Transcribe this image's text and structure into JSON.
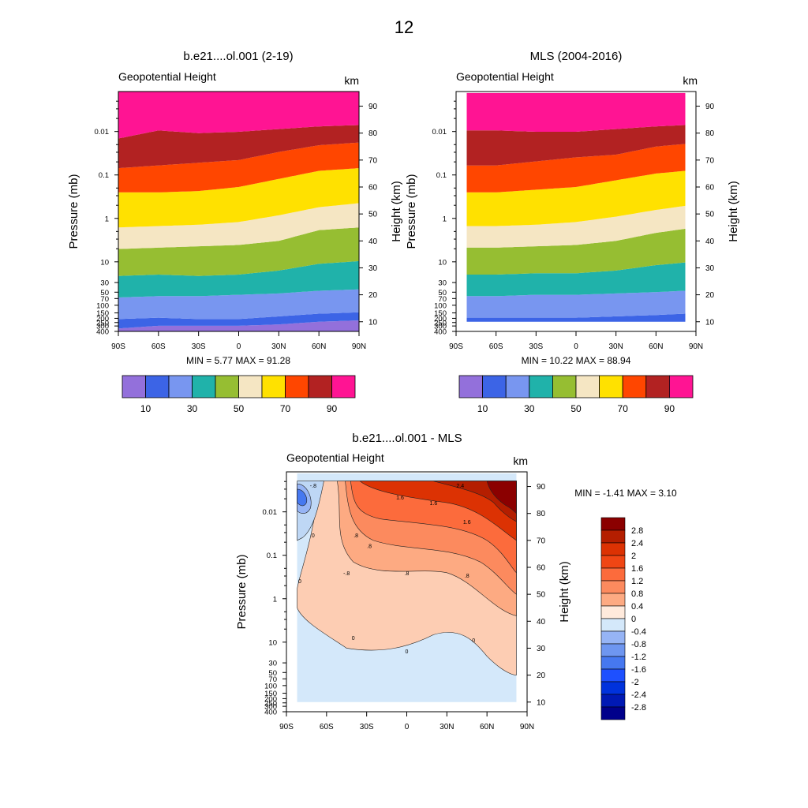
{
  "page_title": "12",
  "colors": {
    "band_palette": [
      "#9370db",
      "#3c64e6",
      "#7896f0",
      "#20b2aa",
      "#96be32",
      "#f5e6c3",
      "#ffe100",
      "#ff4600",
      "#b22222",
      "#ff1493"
    ],
    "diff_palette": [
      "#00008b",
      "#0019b4",
      "#0032dc",
      "#1e50ff",
      "#4678f0",
      "#6e96f0",
      "#96b4f5",
      "#bed7f5",
      "#d4e8fa",
      "#ffeadc",
      "#fdcdb3",
      "#fdaa82",
      "#fc8a5e",
      "#fc6b3c",
      "#f04614",
      "#dc3203",
      "#b41e00",
      "#8b0000"
    ]
  },
  "chart_data": [
    {
      "id": "model",
      "type": "heatmap",
      "title": "b.e21....ol.001 (2-19)",
      "subtitle": "Geopotential Height",
      "units": "km",
      "xlabel": "",
      "ylabel": "Pressure (mb)",
      "ylabel_right": "Height (km)",
      "x_ticks": [
        "90S",
        "60S",
        "30S",
        "0",
        "30N",
        "60N",
        "90N"
      ],
      "x_values": [
        -90,
        -60,
        -30,
        0,
        30,
        60,
        90
      ],
      "pressure_ticks": [
        "0.01",
        "0.1",
        "1",
        "10",
        "30",
        "50",
        "70",
        "100",
        "150",
        "200",
        "250",
        "300",
        "400"
      ],
      "height_ticks": [
        "10",
        "20",
        "30",
        "40",
        "50",
        "60",
        "70",
        "80",
        "90"
      ],
      "xlim": [
        -90,
        90
      ],
      "height_range_km": [
        5.77,
        91.28
      ],
      "contour_levels_km": [
        10,
        20,
        30,
        40,
        50,
        60,
        70,
        80,
        90
      ],
      "band_edges_profile": [
        {
          "lat": -90,
          "edges": [
            7.5,
            11,
            19,
            27,
            37,
            45,
            58,
            67,
            78
          ]
        },
        {
          "lat": -60,
          "edges": [
            8.5,
            11.5,
            19.5,
            27.5,
            37.5,
            45.5,
            58,
            68,
            81
          ]
        },
        {
          "lat": -30,
          "edges": [
            8.5,
            11,
            19.5,
            27,
            38,
            46,
            58.5,
            69,
            80
          ]
        },
        {
          "lat": 0,
          "edges": [
            8.5,
            11,
            20,
            27.5,
            38.5,
            47,
            60,
            70,
            80.5
          ]
        },
        {
          "lat": 30,
          "edges": [
            9,
            12,
            20.5,
            29,
            40,
            49.5,
            63,
            73,
            81.5
          ]
        },
        {
          "lat": 60,
          "edges": [
            10,
            13,
            21.5,
            31.5,
            44,
            52.5,
            66,
            75.5,
            82.5
          ]
        },
        {
          "lat": 90,
          "edges": [
            10.5,
            13.5,
            22,
            32.5,
            45,
            54,
            67,
            76.5,
            83
          ]
        }
      ],
      "stats": {
        "label": "MIN =   5.77  MAX =  91.28",
        "min": 5.77,
        "max": 91.28
      },
      "colorbar": {
        "labels": [
          "10",
          "30",
          "50",
          "70",
          "90"
        ],
        "n_colors": 10
      }
    },
    {
      "id": "obs",
      "type": "heatmap",
      "title": "MLS (2004-2016)",
      "subtitle": "Geopotential Height",
      "units": "km",
      "xlabel": "",
      "ylabel": "Pressure (mb)",
      "ylabel_right": "Height (km)",
      "x_ticks": [
        "90S",
        "60S",
        "30S",
        "0",
        "30N",
        "60N",
        "90N"
      ],
      "x_values": [
        -90,
        -60,
        -30,
        0,
        30,
        60,
        90
      ],
      "pressure_ticks": [
        "0.01",
        "0.1",
        "1",
        "10",
        "30",
        "50",
        "70",
        "100",
        "150",
        "200",
        "250",
        "300",
        "400"
      ],
      "height_ticks": [
        "10",
        "20",
        "30",
        "40",
        "50",
        "60",
        "70",
        "80",
        "90"
      ],
      "xlim": [
        -90,
        90
      ],
      "data_lat_range": [
        -82,
        82
      ],
      "height_range_km": [
        10.22,
        88.94
      ],
      "contour_levels_km": [
        10,
        20,
        30,
        40,
        50,
        60,
        70,
        80,
        90
      ],
      "band_edges_profile": [
        {
          "lat": -82,
          "edges": [
            10,
            11.5,
            19.5,
            27.5,
            37.5,
            45.5,
            58,
            68,
            81
          ]
        },
        {
          "lat": -60,
          "edges": [
            10,
            11.5,
            19.5,
            27.5,
            37.5,
            45.5,
            58,
            68,
            81
          ]
        },
        {
          "lat": -30,
          "edges": [
            10,
            11.5,
            20,
            28,
            38,
            46,
            59,
            69.5,
            80.5
          ]
        },
        {
          "lat": 0,
          "edges": [
            10,
            11.5,
            20,
            28,
            38.5,
            47,
            60,
            71,
            80.5
          ]
        },
        {
          "lat": 30,
          "edges": [
            10,
            12,
            20.5,
            29,
            40,
            49,
            62.5,
            72,
            81.5
          ]
        },
        {
          "lat": 60,
          "edges": [
            10,
            12.5,
            21,
            31,
            43,
            51.5,
            65,
            75,
            82.5
          ]
        },
        {
          "lat": 82,
          "edges": [
            10,
            13,
            21.5,
            32,
            44.5,
            53,
            66,
            76,
            83
          ]
        }
      ],
      "stats": {
        "label": "MIN =  10.22  MAX =  88.94",
        "min": 10.22,
        "max": 88.94
      },
      "colorbar": {
        "labels": [
          "10",
          "30",
          "50",
          "70",
          "90"
        ],
        "n_colors": 10
      }
    },
    {
      "id": "diff",
      "type": "heatmap",
      "title": "b.e21....ol.001 - MLS",
      "subtitle": "Geopotential Height",
      "units": "km",
      "xlabel": "",
      "ylabel": "Pressure (mb)",
      "ylabel_right": "Height (km)",
      "x_ticks": [
        "90S",
        "60S",
        "30S",
        "0",
        "30N",
        "60N",
        "90N"
      ],
      "x_values": [
        -90,
        -60,
        -30,
        0,
        30,
        60,
        90
      ],
      "pressure_ticks": [
        "0.01",
        "0.1",
        "1",
        "10",
        "30",
        "50",
        "70",
        "100",
        "150",
        "200",
        "250",
        "300",
        "400"
      ],
      "height_ticks": [
        "10",
        "20",
        "30",
        "40",
        "50",
        "60",
        "70",
        "80",
        "90"
      ],
      "xlim": [
        -90,
        90
      ],
      "data_lat_range": [
        -82,
        82
      ],
      "stats": {
        "label": "MIN =  -1.41  MAX =   3.10",
        "min": -1.41,
        "max": 3.1
      },
      "contour_labels": [
        "-.8",
        "-.8",
        ".8",
        ".8",
        ".8",
        "1.6",
        "1.6",
        "2.4",
        "0",
        "0",
        "0",
        "0",
        "0",
        ".8",
        "1.6"
      ],
      "regions_km": [
        {
          "level": "2.8",
          "lat_from": 55,
          "lat_to": 82,
          "from_km": 84,
          "to_km": 92
        },
        {
          "level": "2.4",
          "lat_from": 30,
          "lat_to": 82,
          "from_km": 83,
          "to_km": 92
        },
        {
          "level": "2",
          "lat_from": -30,
          "lat_to": 82,
          "from_km": 81,
          "to_km": 92
        },
        {
          "level": "1.6",
          "lat_from": -45,
          "lat_to": 82,
          "from_km": 71,
          "to_km": 86
        },
        {
          "level": "1.2",
          "lat_from": -55,
          "lat_to": 82,
          "from_km": 62,
          "to_km": 80
        },
        {
          "level": "0.8",
          "lat_from": -60,
          "lat_to": 82,
          "from_km": 54,
          "to_km": 70
        },
        {
          "level": "0.4",
          "lat_from": -65,
          "lat_to": 82,
          "from_km": 24,
          "to_km": 60
        },
        {
          "level": "-0.4",
          "lat_from": -82,
          "lat_to": -62,
          "from_km": 60,
          "to_km": 92
        },
        {
          "level": "-1.2",
          "lat_from": -82,
          "lat_to": -70,
          "from_km": 82,
          "to_km": 91
        }
      ],
      "colorbar": {
        "labels": [
          "2.8",
          "2.4",
          "2",
          "1.6",
          "1.2",
          "0.8",
          "0.4",
          "0",
          "-0.4",
          "-0.8",
          "-1.2",
          "-1.6",
          "-2",
          "-2.4",
          "-2.8"
        ]
      }
    }
  ]
}
